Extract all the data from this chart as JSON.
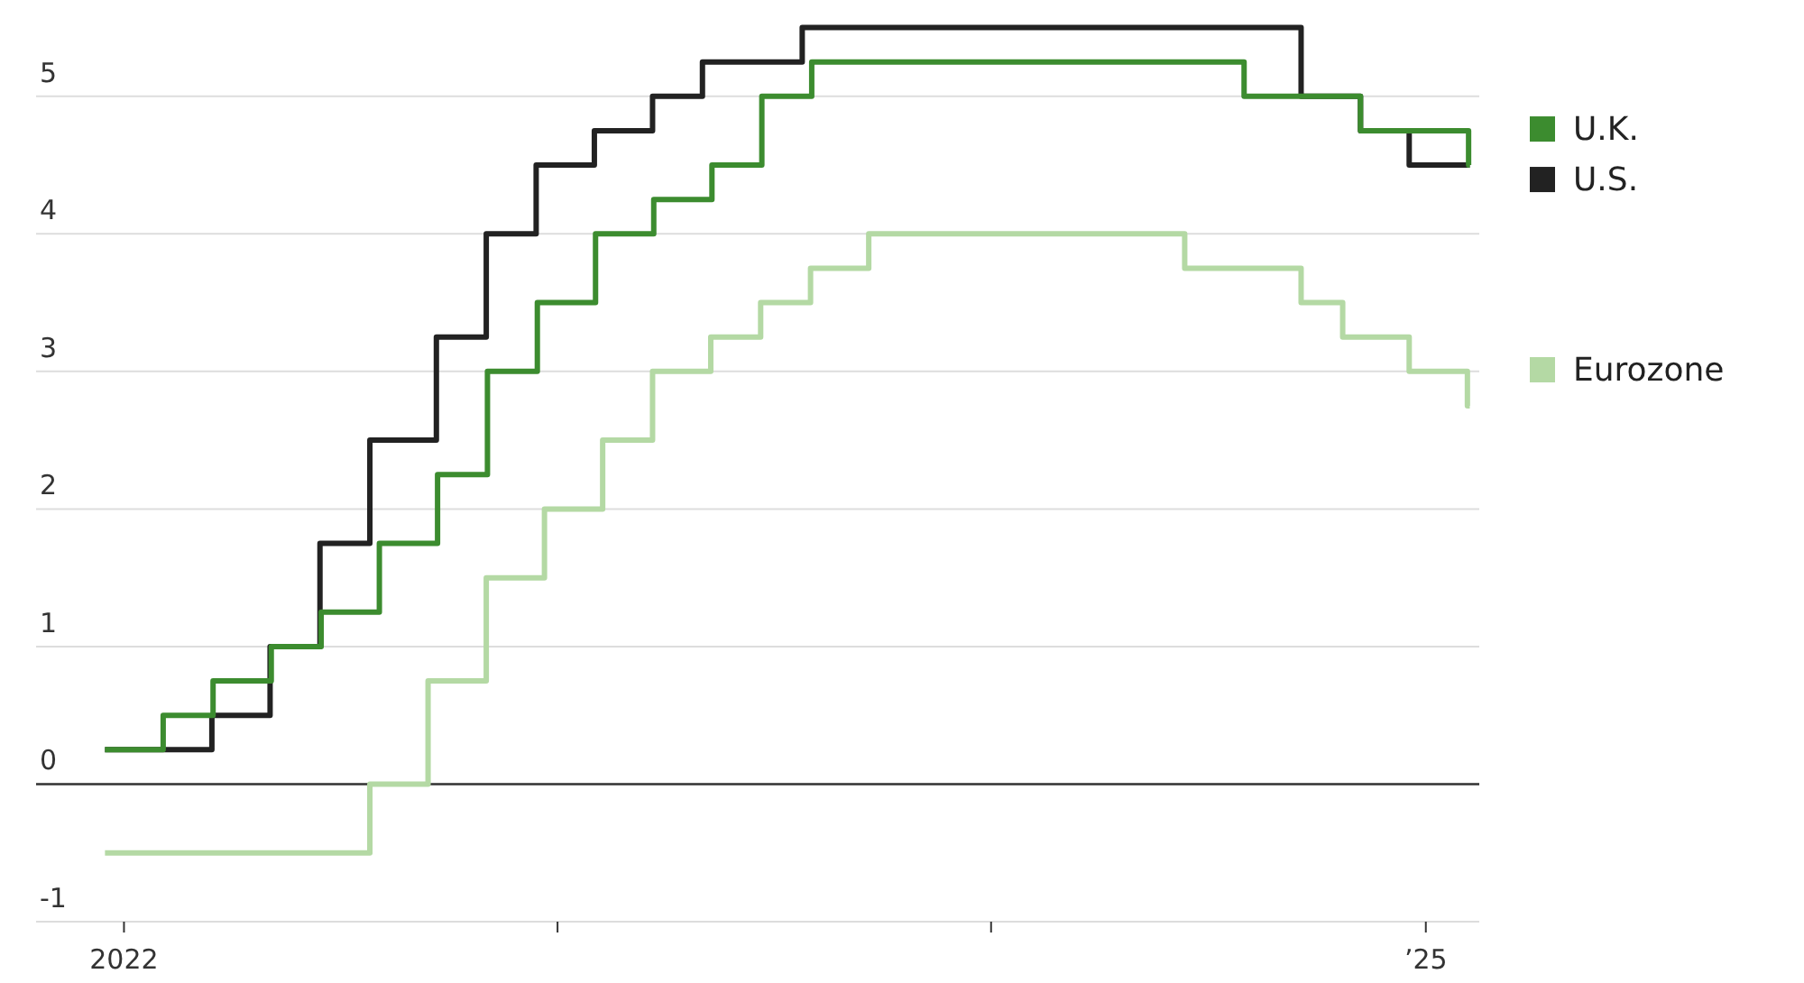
{
  "chart_data": {
    "type": "step",
    "xlim": [
      "2021-10-19",
      "2025-02-15"
    ],
    "xticks": [
      {
        "value": "2022-01-01",
        "label": "2022"
      },
      {
        "value": "2023-01-01",
        "label": null
      },
      {
        "value": "2024-01-01",
        "label": null
      },
      {
        "value": "2025-01-01",
        "label": "’25"
      }
    ],
    "ylim": [
      -1,
      5.7
    ],
    "yticks": [
      -1,
      0,
      1,
      2,
      3,
      4,
      5
    ],
    "grid": "y",
    "legend": "right",
    "marker": "none",
    "line_style": "solid",
    "ref_lines": [
      {
        "axis": "y",
        "value": 0,
        "color": "#333333"
      }
    ],
    "series": [
      {
        "name": "U.K.",
        "color": "#3c8c2f",
        "x": [
          "2021-12-16",
          "2022-02-03",
          "2022-03-17",
          "2022-05-05",
          "2022-06-16",
          "2022-08-04",
          "2022-09-22",
          "2022-11-03",
          "2022-12-15",
          "2023-02-02",
          "2023-03-23",
          "2023-05-11",
          "2023-06-22",
          "2023-08-03",
          "2024-08-01",
          "2024-11-07",
          "2025-02-06",
          "2025-02-07"
        ],
        "values": [
          0.25,
          0.5,
          0.75,
          1,
          1.25,
          1.75,
          2.25,
          3,
          3.5,
          4,
          4.25,
          4.5,
          5,
          5.25,
          5,
          4.75,
          4.5,
          4.5
        ]
      },
      {
        "name": "U.S.",
        "color": "#222222",
        "x": [
          "2021-12-16",
          "2022-03-16",
          "2022-05-04",
          "2022-06-15",
          "2022-07-27",
          "2022-09-21",
          "2022-11-02",
          "2022-12-14",
          "2023-02-01",
          "2023-03-22",
          "2023-05-03",
          "2023-07-26",
          "2024-09-18",
          "2024-11-07",
          "2024-12-18",
          "2025-02-07"
        ],
        "values": [
          0.25,
          0.5,
          1,
          1.75,
          2.5,
          3.25,
          4,
          4.5,
          4.75,
          5,
          5.25,
          5.5,
          5,
          4.75,
          4.5,
          4.5
        ]
      },
      {
        "name": "Eurozone",
        "color": "#b4d9a4",
        "x": [
          "2021-12-16",
          "2022-07-27",
          "2022-09-14",
          "2022-11-02",
          "2022-12-21",
          "2023-02-08",
          "2023-03-22",
          "2023-05-10",
          "2023-06-21",
          "2023-08-02",
          "2023-09-20",
          "2024-06-12",
          "2024-09-18",
          "2024-10-23",
          "2024-12-18",
          "2025-02-05",
          "2025-02-07"
        ],
        "values": [
          -0.5,
          0,
          0.75,
          1.5,
          2,
          2.5,
          3,
          3.25,
          3.5,
          3.75,
          4,
          3.75,
          3.5,
          3.25,
          3,
          2.75,
          2.75
        ]
      }
    ]
  }
}
